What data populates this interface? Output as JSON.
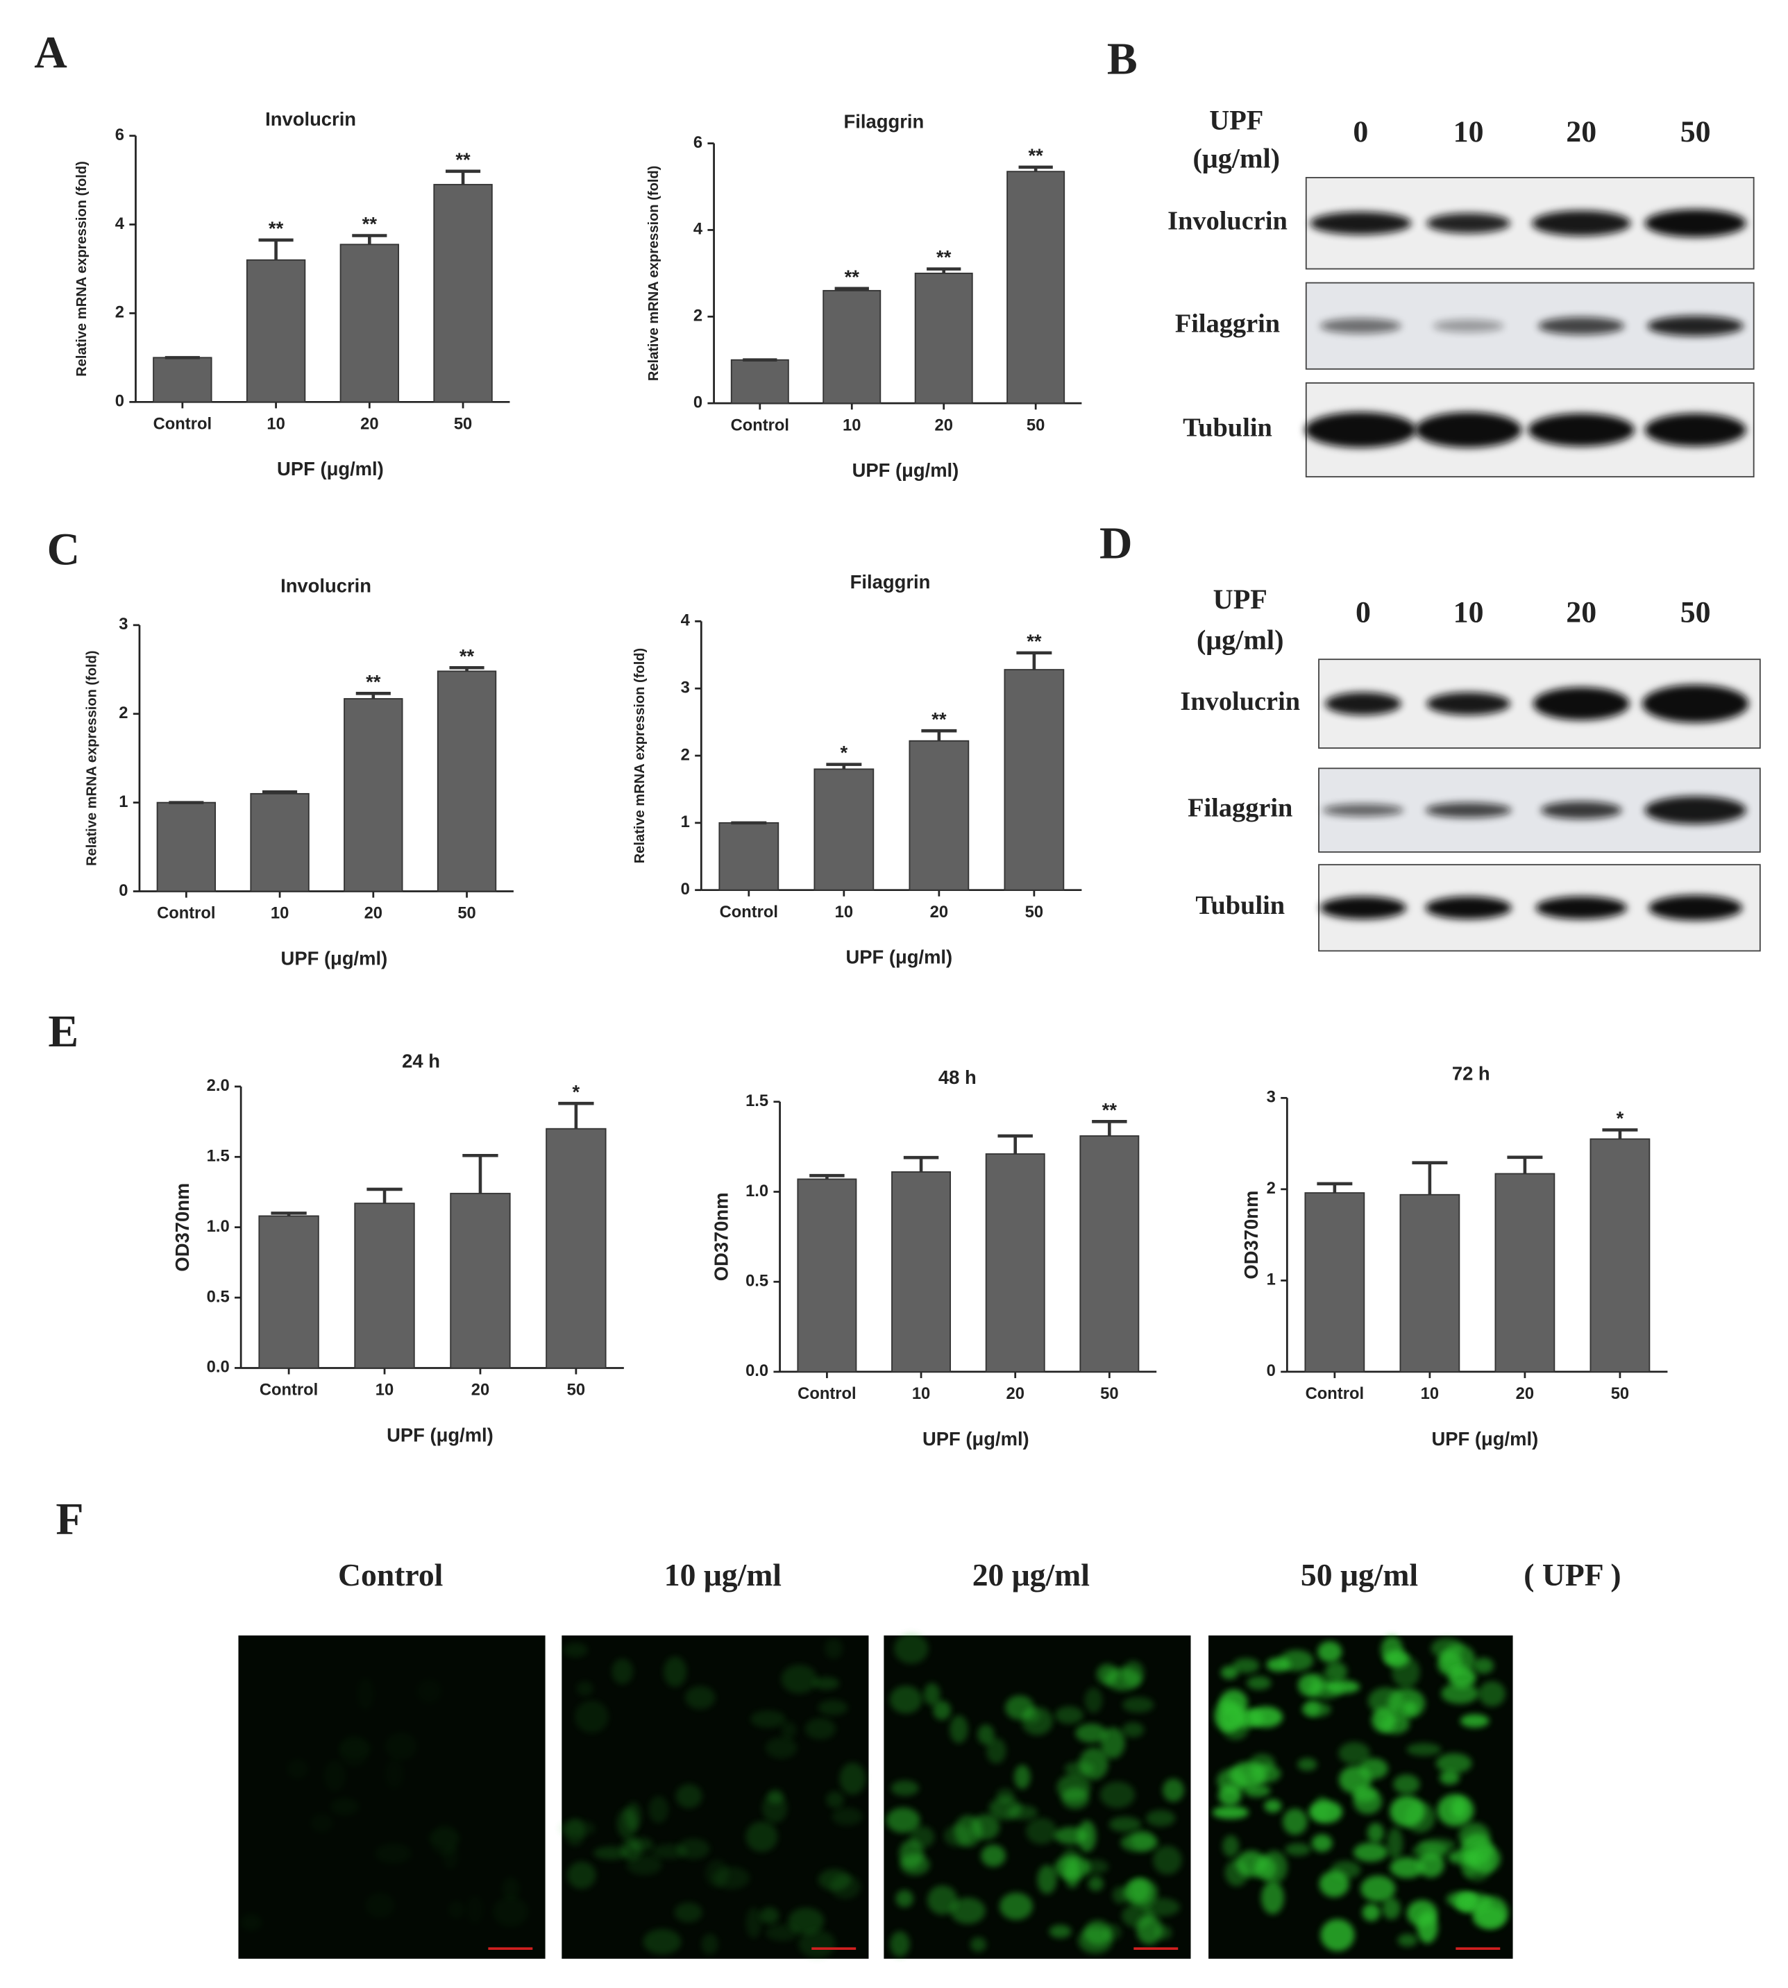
{
  "panel_labels": [
    "A",
    "B",
    "C",
    "D",
    "E",
    "F"
  ],
  "chart_data": [
    {
      "type": "bar",
      "title": "Involucrin",
      "y_label": "Relative mRNA expression (fold)",
      "x_label": "UPF (μg/ml)",
      "color": "#616161",
      "categories": [
        "Control",
        "10",
        "20",
        "50"
      ],
      "values": [
        1,
        3.2,
        3.55,
        4.9
      ],
      "errors": [
        0,
        0.45,
        0.2,
        0.3
      ],
      "annotations": [
        null,
        "**",
        "**",
        "**"
      ],
      "ylim": [
        0,
        6
      ],
      "yticks": [
        0,
        2,
        4,
        6
      ]
    },
    {
      "type": "bar",
      "title": "Filaggrin",
      "y_label": "Relative mRNA expression (fold)",
      "x_label": "UPF (μg/ml)",
      "color": "#616161",
      "categories": [
        "Control",
        "10",
        "20",
        "50"
      ],
      "values": [
        1,
        2.6,
        3.0,
        5.35
      ],
      "errors": [
        0,
        0.05,
        0.1,
        0.1
      ],
      "annotations": [
        null,
        "**",
        "**",
        "**"
      ],
      "ylim": [
        0,
        6
      ],
      "yticks": [
        0,
        2,
        4,
        6
      ]
    },
    {
      "type": "bar",
      "title": "Involucrin",
      "y_label": "Relative mRNA expression (fold)",
      "x_label": "UPF (μg/ml)",
      "color": "#616161",
      "categories": [
        "Control",
        "10",
        "20",
        "50"
      ],
      "values": [
        1,
        1.1,
        2.17,
        2.48
      ],
      "errors": [
        0,
        0.02,
        0.06,
        0.04
      ],
      "annotations": [
        null,
        null,
        "**",
        "**"
      ],
      "ylim": [
        0,
        3
      ],
      "yticks": [
        0,
        1,
        2,
        3
      ]
    },
    {
      "type": "bar",
      "title": "Filaggrin",
      "y_label": "Relative mRNA expression (fold)",
      "x_label": "UPF (μg/ml)",
      "color": "#616161",
      "categories": [
        "Control",
        "10",
        "20",
        "50"
      ],
      "values": [
        1,
        1.8,
        2.22,
        3.28
      ],
      "errors": [
        0,
        0.07,
        0.15,
        0.25
      ],
      "annotations": [
        null,
        "*",
        "**",
        "**"
      ],
      "ylim": [
        0,
        4
      ],
      "yticks": [
        0,
        1,
        2,
        3,
        4
      ]
    },
    {
      "type": "bar",
      "title": "24 h",
      "y_label": "OD370nm",
      "x_label": "UPF (μg/ml)",
      "color": "#616161",
      "categories": [
        "Control",
        "10",
        "20",
        "50"
      ],
      "values": [
        1.08,
        1.17,
        1.24,
        1.7
      ],
      "errors": [
        0.02,
        0.1,
        0.27,
        0.18
      ],
      "annotations": [
        null,
        null,
        null,
        "*"
      ],
      "ylim": [
        0,
        2
      ],
      "yticks": [
        {
          "value": 0,
          "label": "0.0"
        },
        {
          "value": 0.5,
          "label": "0.5"
        },
        {
          "value": 1,
          "label": "1.0"
        },
        {
          "value": 1.5,
          "label": "1.5"
        },
        {
          "value": 2,
          "label": "2.0"
        }
      ]
    },
    {
      "type": "bar",
      "title": "48 h",
      "y_label": "OD370nm",
      "x_label": "UPF (μg/ml)",
      "color": "#616161",
      "categories": [
        "Control",
        "10",
        "20",
        "50"
      ],
      "values": [
        1.07,
        1.11,
        1.21,
        1.31
      ],
      "errors": [
        0.02,
        0.08,
        0.1,
        0.08
      ],
      "annotations": [
        null,
        null,
        null,
        "**"
      ],
      "ylim": [
        0,
        1.5
      ],
      "yticks": [
        {
          "value": 0,
          "label": "0.0"
        },
        {
          "value": 0.5,
          "label": "0.5"
        },
        {
          "value": 1,
          "label": "1.0"
        },
        {
          "value": 1.5,
          "label": "1.5"
        }
      ]
    },
    {
      "type": "bar",
      "title": "72 h",
      "y_label": "OD370nm",
      "x_label": "UPF  (μg/ml)",
      "color": "#616161",
      "categories": [
        "Control",
        "10",
        "20",
        "50"
      ],
      "values": [
        1.96,
        1.94,
        2.17,
        2.55
      ],
      "errors": [
        0.1,
        0.35,
        0.18,
        0.1
      ],
      "annotations": [
        null,
        null,
        null,
        "*"
      ],
      "ylim": [
        0,
        3
      ],
      "yticks": [
        0,
        1,
        2,
        3
      ]
    }
  ],
  "blots": [
    {
      "header": [
        "UPF",
        "(μg/ml)"
      ],
      "lanes": [
        "0",
        "10",
        "20",
        "50"
      ],
      "rows": [
        "Involucrin",
        "Filaggrin",
        "Tubulin"
      ]
    },
    {
      "header": [
        "UPF",
        "(μg/ml)"
      ],
      "lanes": [
        "0",
        "10",
        "20",
        "50"
      ],
      "rows": [
        "Involucrin",
        "Filaggrin",
        "Tubulin"
      ]
    }
  ],
  "fluorescence": {
    "labels": [
      "Control",
      "10 μg/ml",
      "20 μg/ml",
      "50 μg/ml"
    ],
    "unit": "( UPF )"
  }
}
